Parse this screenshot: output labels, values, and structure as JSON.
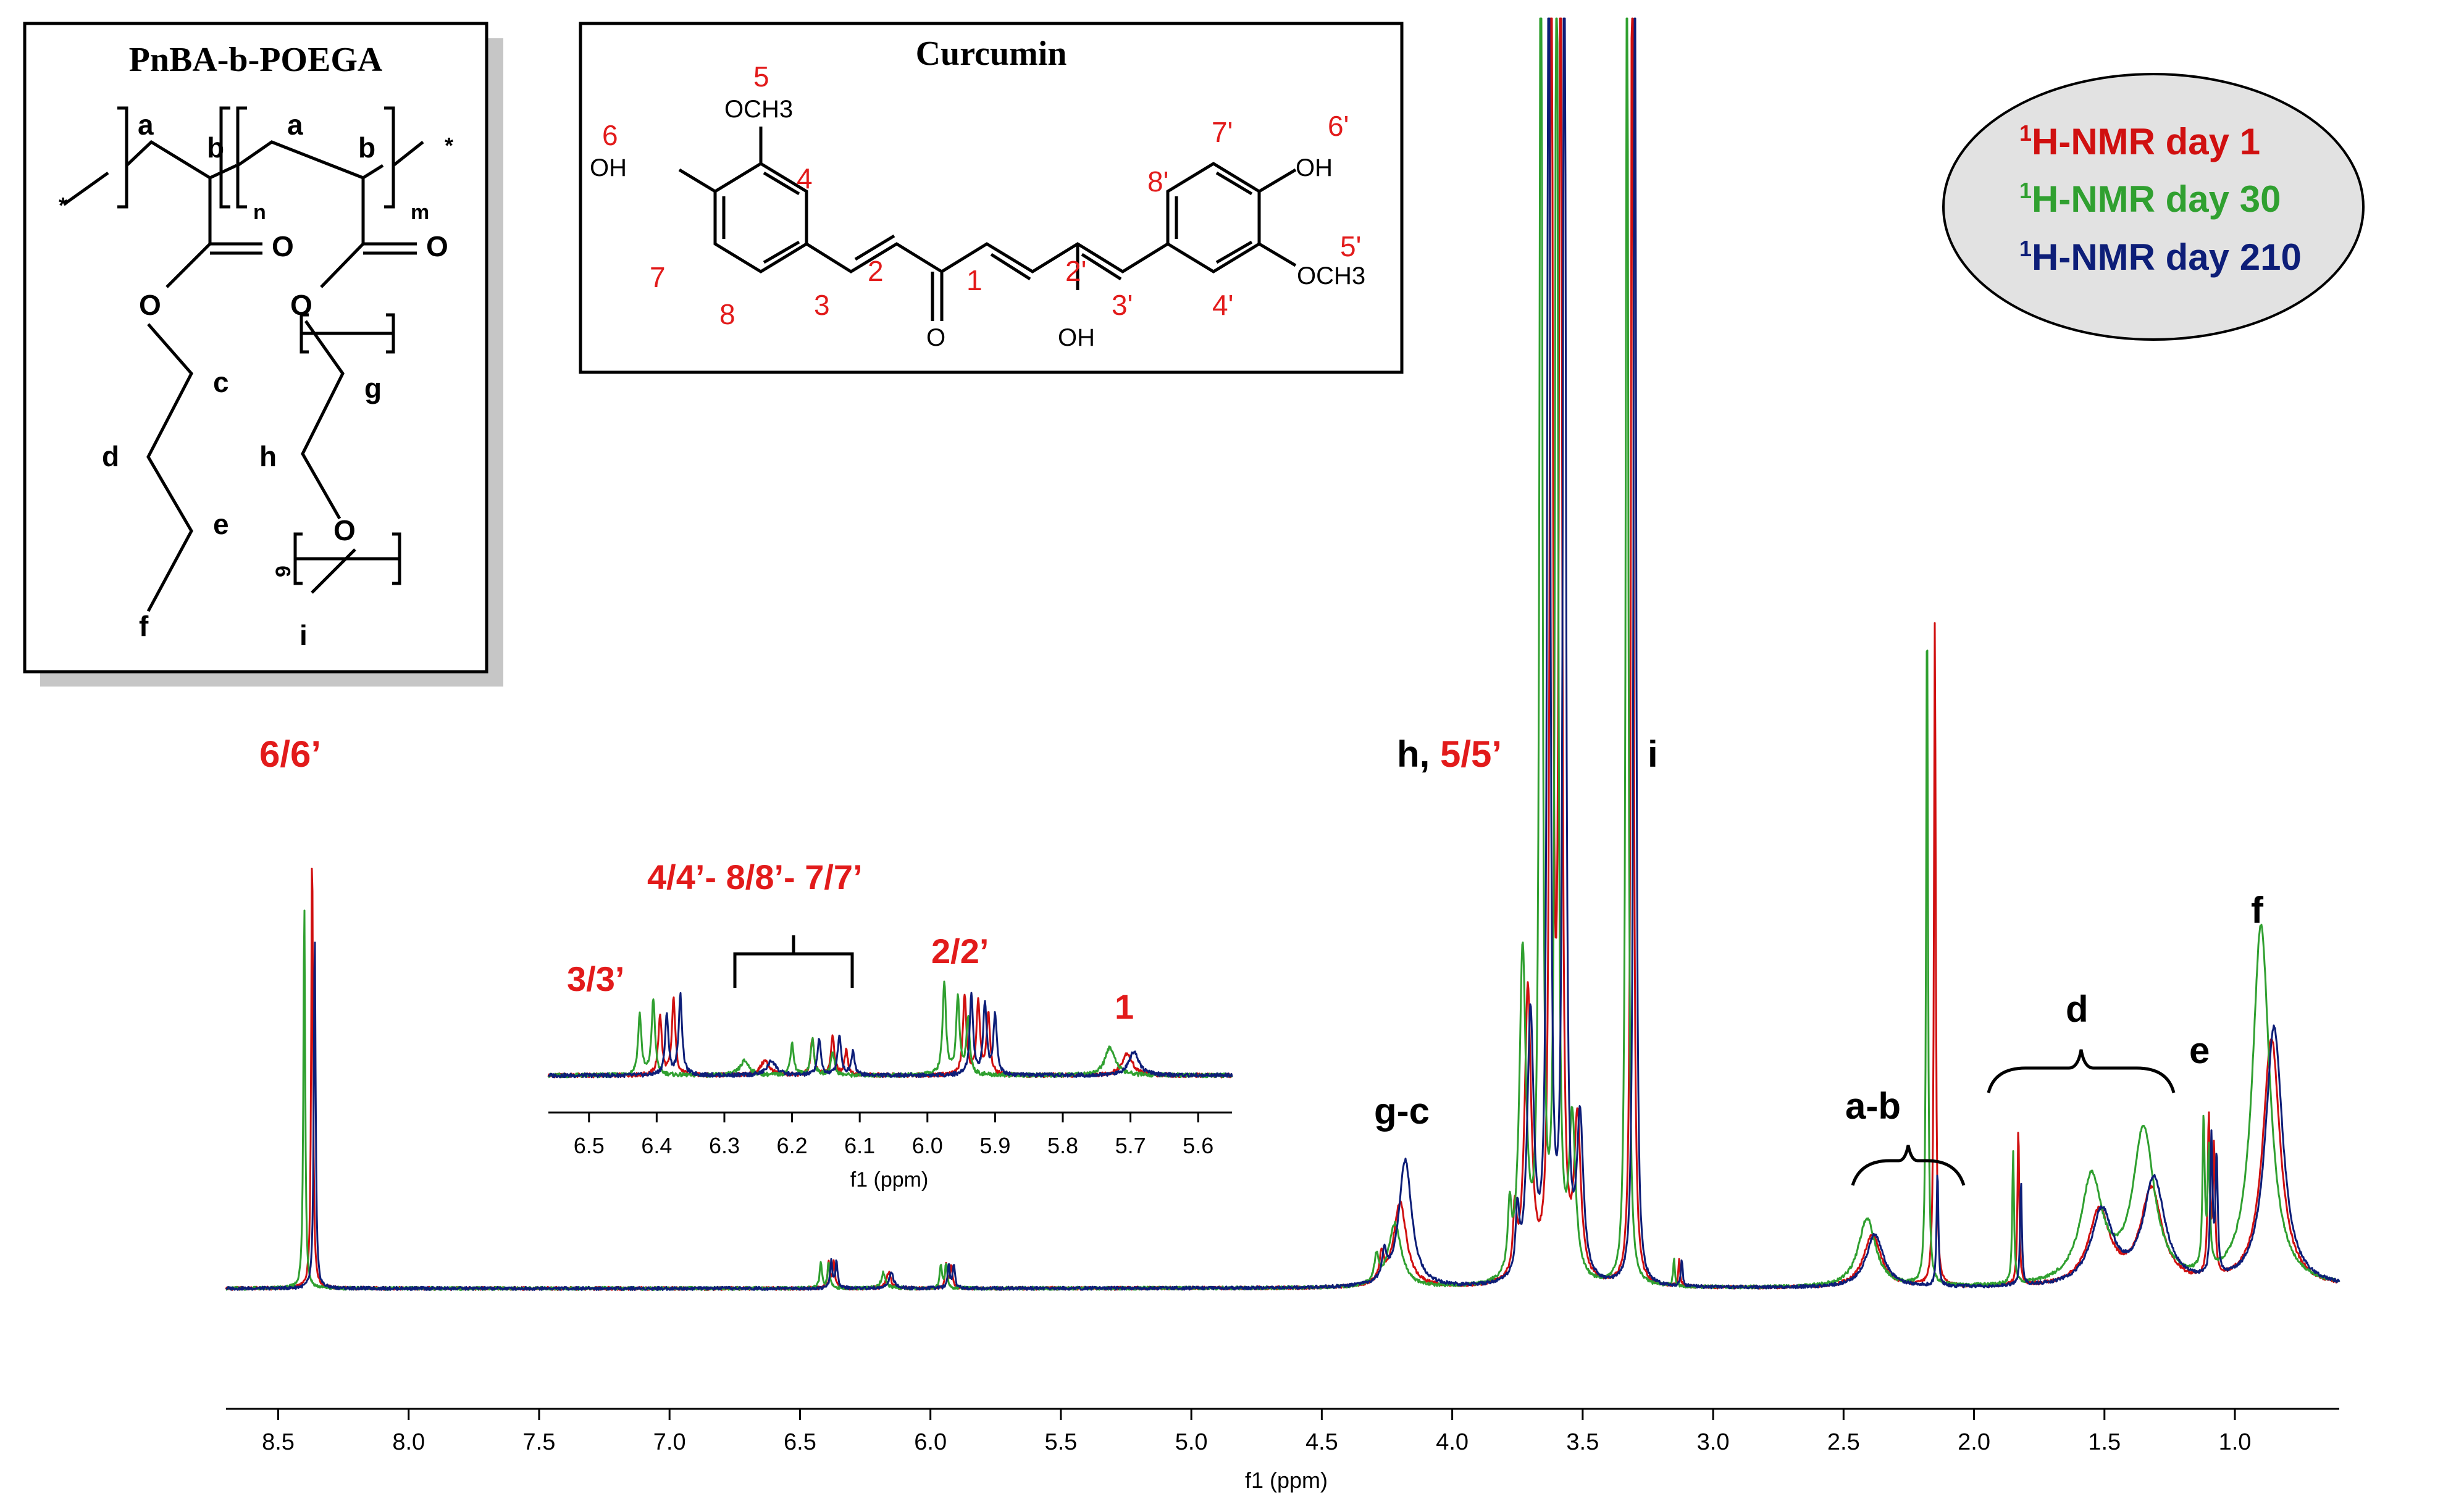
{
  "colors": {
    "day1": "#d01010",
    "day30": "#30a030",
    "day210": "#0d1e78",
    "red_label": "#e21b1b",
    "black": "#000000",
    "legend_fill": "#e2e2e2",
    "box_shadow": "#c6c6c6"
  },
  "legend": {
    "items": [
      {
        "sup": "1",
        "text": "H-NMR day 1",
        "color_key": "day1"
      },
      {
        "sup": "1",
        "text": "H-NMR day 30",
        "color_key": "day30"
      },
      {
        "sup": "1",
        "text": "H-NMR day 210",
        "color_key": "day210"
      }
    ]
  },
  "polymer": {
    "title": "PnBA-b-POEGA",
    "labels": {
      "a1": "a",
      "b1": "b",
      "n": "n",
      "a2": "a",
      "b2": "b",
      "m": "m",
      "c": "c",
      "d": "d",
      "e": "e",
      "f": "f",
      "g": "g",
      "h": "h",
      "i": "i",
      "nine": "9",
      "star1": "*",
      "star2": "*",
      "o1": "O",
      "o2": "O",
      "o3": "O",
      "o4": "O",
      "o5": "O"
    }
  },
  "curcumin": {
    "title": "Curcumin",
    "labels": {
      "n1": "1",
      "n2": "2",
      "n3": "3",
      "n4": "4",
      "n5": "5",
      "n6": "6",
      "n7": "7",
      "n8": "8",
      "p2": "2'",
      "p3": "3'",
      "p4": "4'",
      "p5": "5'",
      "p6": "6'",
      "p7": "7'",
      "p8": "8'",
      "och3_left": "OCH3",
      "och3_right": "OCH3",
      "oh_left": "OH",
      "oh_right": "OH",
      "oh_mid": "OH",
      "o_keto": "O"
    }
  },
  "peak_labels": {
    "six": "6/6’",
    "h": "h, ",
    "five": "5/5’",
    "i": "i",
    "gc": "g-c",
    "ab": "a-b",
    "d": "d",
    "e": "e",
    "f": "f"
  },
  "inset_labels": {
    "three": "3/3’",
    "four": "4/4’- 8/8’- 7/7’",
    "two": "2/2’",
    "one": "1"
  },
  "chart_data": [
    {
      "type": "line",
      "title": "",
      "xlabel": "f1 (ppm)",
      "ylabel": "",
      "xlim": [
        8.7,
        0.6
      ],
      "x_reversed": true,
      "xticks": [
        "8.5",
        "8.0",
        "7.5",
        "7.0",
        "6.5",
        "6.0",
        "5.5",
        "5.0",
        "4.5",
        "4.0",
        "3.5",
        "3.0",
        "2.5",
        "2.0",
        "1.5",
        "1.0"
      ],
      "tick_values": [
        8.5,
        8.0,
        7.5,
        7.0,
        6.5,
        6.0,
        5.5,
        5.0,
        4.5,
        4.0,
        3.5,
        3.0,
        2.5,
        2.0,
        1.5,
        1.0
      ],
      "grid": false,
      "legend_position": "top-right",
      "series": [
        {
          "name": "1H-NMR day 1",
          "color_key": "day1",
          "peaks": [
            {
              "x": 8.37,
              "h": 0.84,
              "w": 0.004
            },
            {
              "x": 6.39,
              "h": 0.05,
              "w": 0.005
            },
            {
              "x": 6.37,
              "h": 0.05,
              "w": 0.005
            },
            {
              "x": 6.16,
              "h": 0.03,
              "w": 0.01
            },
            {
              "x": 5.94,
              "h": 0.045,
              "w": 0.005
            },
            {
              "x": 5.92,
              "h": 0.045,
              "w": 0.005
            },
            {
              "x": 4.2,
              "h": 0.16,
              "w": 0.03
            },
            {
              "x": 4.27,
              "h": 0.05,
              "w": 0.01
            },
            {
              "x": 3.71,
              "h": 0.55,
              "w": 0.015
            },
            {
              "x": 3.76,
              "h": 0.12,
              "w": 0.008
            },
            {
              "x": 3.62,
              "h": 3.0,
              "w": 0.006
            },
            {
              "x": 3.585,
              "h": 3.0,
              "w": 0.006
            },
            {
              "x": 3.52,
              "h": 0.3,
              "w": 0.015
            },
            {
              "x": 3.31,
              "h": 3.0,
              "w": 0.005
            },
            {
              "x": 3.13,
              "h": 0.05,
              "w": 0.004
            },
            {
              "x": 2.39,
              "h": 0.1,
              "w": 0.04
            },
            {
              "x": 2.15,
              "h": 1.26,
              "w": 0.004
            },
            {
              "x": 1.83,
              "h": 0.3,
              "w": 0.004
            },
            {
              "x": 1.52,
              "h": 0.14,
              "w": 0.05
            },
            {
              "x": 1.32,
              "h": 0.18,
              "w": 0.05
            },
            {
              "x": 1.1,
              "h": 0.3,
              "w": 0.005
            },
            {
              "x": 1.08,
              "h": 0.24,
              "w": 0.005
            },
            {
              "x": 0.86,
              "h": 0.47,
              "w": 0.04
            }
          ]
        },
        {
          "name": "1H-NMR day 30",
          "color_key": "day30",
          "peaks": [
            {
              "x": 8.4,
              "h": 0.73,
              "w": 0.004
            },
            {
              "x": 6.42,
              "h": 0.05,
              "w": 0.005
            },
            {
              "x": 6.39,
              "h": 0.05,
              "w": 0.005
            },
            {
              "x": 6.18,
              "h": 0.03,
              "w": 0.01
            },
            {
              "x": 5.96,
              "h": 0.045,
              "w": 0.005
            },
            {
              "x": 5.94,
              "h": 0.045,
              "w": 0.005
            },
            {
              "x": 4.22,
              "h": 0.12,
              "w": 0.03
            },
            {
              "x": 4.29,
              "h": 0.05,
              "w": 0.01
            },
            {
              "x": 3.73,
              "h": 0.62,
              "w": 0.015
            },
            {
              "x": 3.78,
              "h": 0.12,
              "w": 0.008
            },
            {
              "x": 3.66,
              "h": 3.0,
              "w": 0.006
            },
            {
              "x": 3.6,
              "h": 3.0,
              "w": 0.006
            },
            {
              "x": 3.54,
              "h": 0.3,
              "w": 0.015
            },
            {
              "x": 3.33,
              "h": 3.0,
              "w": 0.005
            },
            {
              "x": 3.15,
              "h": 0.05,
              "w": 0.004
            },
            {
              "x": 2.41,
              "h": 0.13,
              "w": 0.04
            },
            {
              "x": 2.18,
              "h": 1.3,
              "w": 0.004
            },
            {
              "x": 1.85,
              "h": 0.25,
              "w": 0.004
            },
            {
              "x": 1.55,
              "h": 0.2,
              "w": 0.05
            },
            {
              "x": 1.35,
              "h": 0.29,
              "w": 0.05
            },
            {
              "x": 1.12,
              "h": 0.28,
              "w": 0.005
            },
            {
              "x": 1.1,
              "h": 0.22,
              "w": 0.005
            },
            {
              "x": 0.9,
              "h": 0.68,
              "w": 0.04
            }
          ]
        },
        {
          "name": "1H-NMR day 210",
          "color_key": "day210",
          "peaks": [
            {
              "x": 8.36,
              "h": 0.68,
              "w": 0.004
            },
            {
              "x": 6.38,
              "h": 0.05,
              "w": 0.005
            },
            {
              "x": 6.36,
              "h": 0.05,
              "w": 0.005
            },
            {
              "x": 6.15,
              "h": 0.03,
              "w": 0.01
            },
            {
              "x": 5.93,
              "h": 0.045,
              "w": 0.005
            },
            {
              "x": 5.91,
              "h": 0.045,
              "w": 0.005
            },
            {
              "x": 4.18,
              "h": 0.24,
              "w": 0.03
            },
            {
              "x": 4.26,
              "h": 0.05,
              "w": 0.01
            },
            {
              "x": 3.7,
              "h": 0.5,
              "w": 0.015
            },
            {
              "x": 3.75,
              "h": 0.12,
              "w": 0.008
            },
            {
              "x": 3.63,
              "h": 3.0,
              "w": 0.006
            },
            {
              "x": 3.57,
              "h": 3.0,
              "w": 0.006
            },
            {
              "x": 3.51,
              "h": 0.3,
              "w": 0.015
            },
            {
              "x": 3.3,
              "h": 3.0,
              "w": 0.005
            },
            {
              "x": 3.12,
              "h": 0.05,
              "w": 0.004
            },
            {
              "x": 2.38,
              "h": 0.1,
              "w": 0.04
            },
            {
              "x": 2.14,
              "h": 0.22,
              "w": 0.004
            },
            {
              "x": 1.82,
              "h": 0.2,
              "w": 0.004
            },
            {
              "x": 1.51,
              "h": 0.14,
              "w": 0.05
            },
            {
              "x": 1.31,
              "h": 0.2,
              "w": 0.05
            },
            {
              "x": 1.09,
              "h": 0.26,
              "w": 0.005
            },
            {
              "x": 1.07,
              "h": 0.22,
              "w": 0.005
            },
            {
              "x": 0.85,
              "h": 0.49,
              "w": 0.04
            }
          ]
        }
      ]
    },
    {
      "type": "line",
      "title": "",
      "xlabel": "f1 (ppm)",
      "ylabel": "",
      "xlim": [
        6.56,
        5.55
      ],
      "x_reversed": true,
      "xticks": [
        "6.5",
        "6.4",
        "6.3",
        "6.2",
        "6.1",
        "6.0",
        "5.9",
        "5.8",
        "5.7",
        "5.6"
      ],
      "tick_values": [
        6.5,
        6.4,
        6.3,
        6.2,
        6.1,
        6.0,
        5.9,
        5.8,
        5.7,
        5.6
      ],
      "grid": false,
      "series": [
        {
          "name": "1H-NMR day 1",
          "color_key": "day1",
          "peaks": [
            {
              "x": 6.395,
              "h": 0.75,
              "w": 0.003
            },
            {
              "x": 6.375,
              "h": 0.95,
              "w": 0.003
            },
            {
              "x": 6.24,
              "h": 0.18,
              "w": 0.008
            },
            {
              "x": 6.17,
              "h": 0.45,
              "w": 0.003
            },
            {
              "x": 6.14,
              "h": 0.5,
              "w": 0.003
            },
            {
              "x": 6.12,
              "h": 0.3,
              "w": 0.003
            },
            {
              "x": 5.945,
              "h": 1.0,
              "w": 0.003
            },
            {
              "x": 5.925,
              "h": 0.9,
              "w": 0.003
            },
            {
              "x": 5.91,
              "h": 0.75,
              "w": 0.003
            },
            {
              "x": 5.705,
              "h": 0.28,
              "w": 0.009
            }
          ]
        },
        {
          "name": "1H-NMR day 30",
          "color_key": "day30",
          "peaks": [
            {
              "x": 6.425,
              "h": 0.75,
              "w": 0.003
            },
            {
              "x": 6.405,
              "h": 0.95,
              "w": 0.003
            },
            {
              "x": 6.27,
              "h": 0.18,
              "w": 0.008
            },
            {
              "x": 6.2,
              "h": 0.4,
              "w": 0.003
            },
            {
              "x": 6.17,
              "h": 0.45,
              "w": 0.003
            },
            {
              "x": 6.14,
              "h": 0.3,
              "w": 0.003
            },
            {
              "x": 5.975,
              "h": 1.15,
              "w": 0.003
            },
            {
              "x": 5.955,
              "h": 0.95,
              "w": 0.003
            },
            {
              "x": 5.94,
              "h": 0.7,
              "w": 0.003
            },
            {
              "x": 5.73,
              "h": 0.35,
              "w": 0.009
            }
          ]
        },
        {
          "name": "1H-NMR day 210",
          "color_key": "day210",
          "peaks": [
            {
              "x": 6.385,
              "h": 0.75,
              "w": 0.003
            },
            {
              "x": 6.365,
              "h": 1.0,
              "w": 0.003
            },
            {
              "x": 6.23,
              "h": 0.18,
              "w": 0.008
            },
            {
              "x": 6.16,
              "h": 0.45,
              "w": 0.003
            },
            {
              "x": 6.13,
              "h": 0.5,
              "w": 0.003
            },
            {
              "x": 6.11,
              "h": 0.3,
              "w": 0.003
            },
            {
              "x": 5.935,
              "h": 1.0,
              "w": 0.003
            },
            {
              "x": 5.915,
              "h": 0.9,
              "w": 0.003
            },
            {
              "x": 5.9,
              "h": 0.75,
              "w": 0.003
            },
            {
              "x": 5.695,
              "h": 0.3,
              "w": 0.009
            }
          ]
        }
      ]
    }
  ]
}
